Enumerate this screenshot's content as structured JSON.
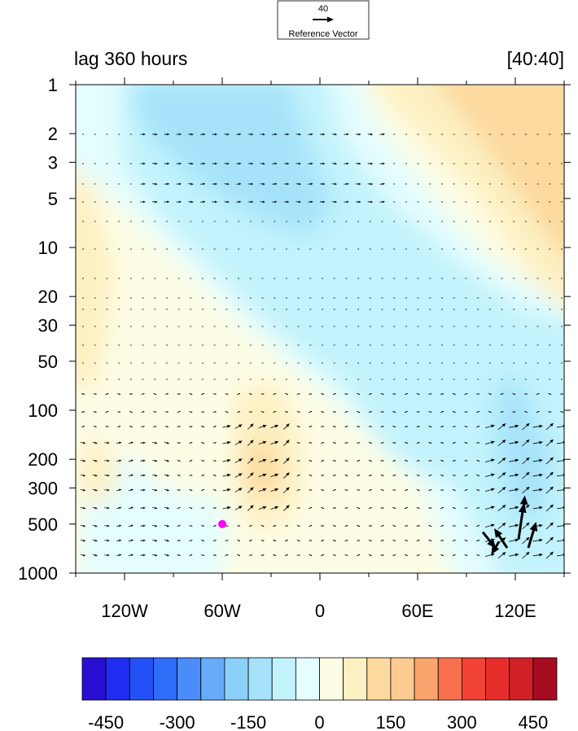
{
  "chart_data": {
    "type": "heatmap",
    "title_left": "lag 360 hours",
    "title_right": "[40:40]",
    "reference_vector": {
      "magnitude_label": "40",
      "label": "Reference Vector"
    },
    "x_axis": {
      "range": [
        -150,
        150
      ],
      "ticks": [
        -120,
        -60,
        0,
        60,
        120
      ],
      "tick_labels": [
        "120W",
        "60W",
        "0",
        "60E",
        "120E"
      ]
    },
    "y_axis": {
      "scale": "log",
      "reversed": true,
      "range": [
        1,
        1000
      ],
      "ticks": [
        1,
        2,
        3,
        5,
        10,
        20,
        30,
        50,
        100,
        200,
        300,
        500,
        1000
      ],
      "tick_labels": [
        "1",
        "2",
        "3",
        "5",
        "10",
        "20",
        "30",
        "50",
        "100",
        "200",
        "300",
        "500",
        "1000"
      ]
    },
    "colorbar": {
      "levels": [
        -500,
        -450,
        -400,
        -350,
        -300,
        -250,
        -200,
        -150,
        -100,
        -50,
        0,
        50,
        100,
        150,
        200,
        250,
        300,
        350,
        400,
        450,
        500
      ],
      "tick_values": [
        -450,
        -300,
        -150,
        0,
        150,
        300,
        450
      ],
      "tick_labels": [
        "-450",
        "-300",
        "-150",
        "0",
        "150",
        "300",
        "450"
      ],
      "colors": [
        "#2a0fd2",
        "#1f2ef2",
        "#2350f5",
        "#2f6cf7",
        "#4a8df8",
        "#66acf8",
        "#8bd0f8",
        "#a6e3fa",
        "#c2f3fc",
        "#e4fdfe",
        "#fdfde6",
        "#fdf0c2",
        "#fcd99e",
        "#fccb92",
        "#fba56e",
        "#f9704f",
        "#f24336",
        "#e82e2c",
        "#d11f26",
        "#a50c1f"
      ]
    },
    "marker": {
      "lon": -60,
      "pressure": 500,
      "color": "#ff00ff"
    },
    "field_features": [
      {
        "lon": -40,
        "pressure": 4,
        "value": -140
      },
      {
        "lon": 120,
        "pressure": 250,
        "value": -170
      },
      {
        "lon": 130,
        "pressure": 2,
        "value": 160
      },
      {
        "lon": -145,
        "pressure": 15,
        "value": 80
      },
      {
        "lon": -40,
        "pressure": 250,
        "value": 110
      }
    ],
    "wind_vectors_strong": [
      {
        "lon": 100,
        "pressure": 560,
        "u": 20,
        "v": -25
      },
      {
        "lon": 115,
        "pressure": 700,
        "u": -20,
        "v": 30
      },
      {
        "lon": 122,
        "pressure": 620,
        "u": 8,
        "v": 55
      },
      {
        "lon": 128,
        "pressure": 700,
        "u": 12,
        "v": 40
      },
      {
        "lon": 110,
        "pressure": 640,
        "u": -12,
        "v": -20
      },
      {
        "lon": 125,
        "pressure": 420,
        "u": 2,
        "v": 25
      }
    ]
  }
}
